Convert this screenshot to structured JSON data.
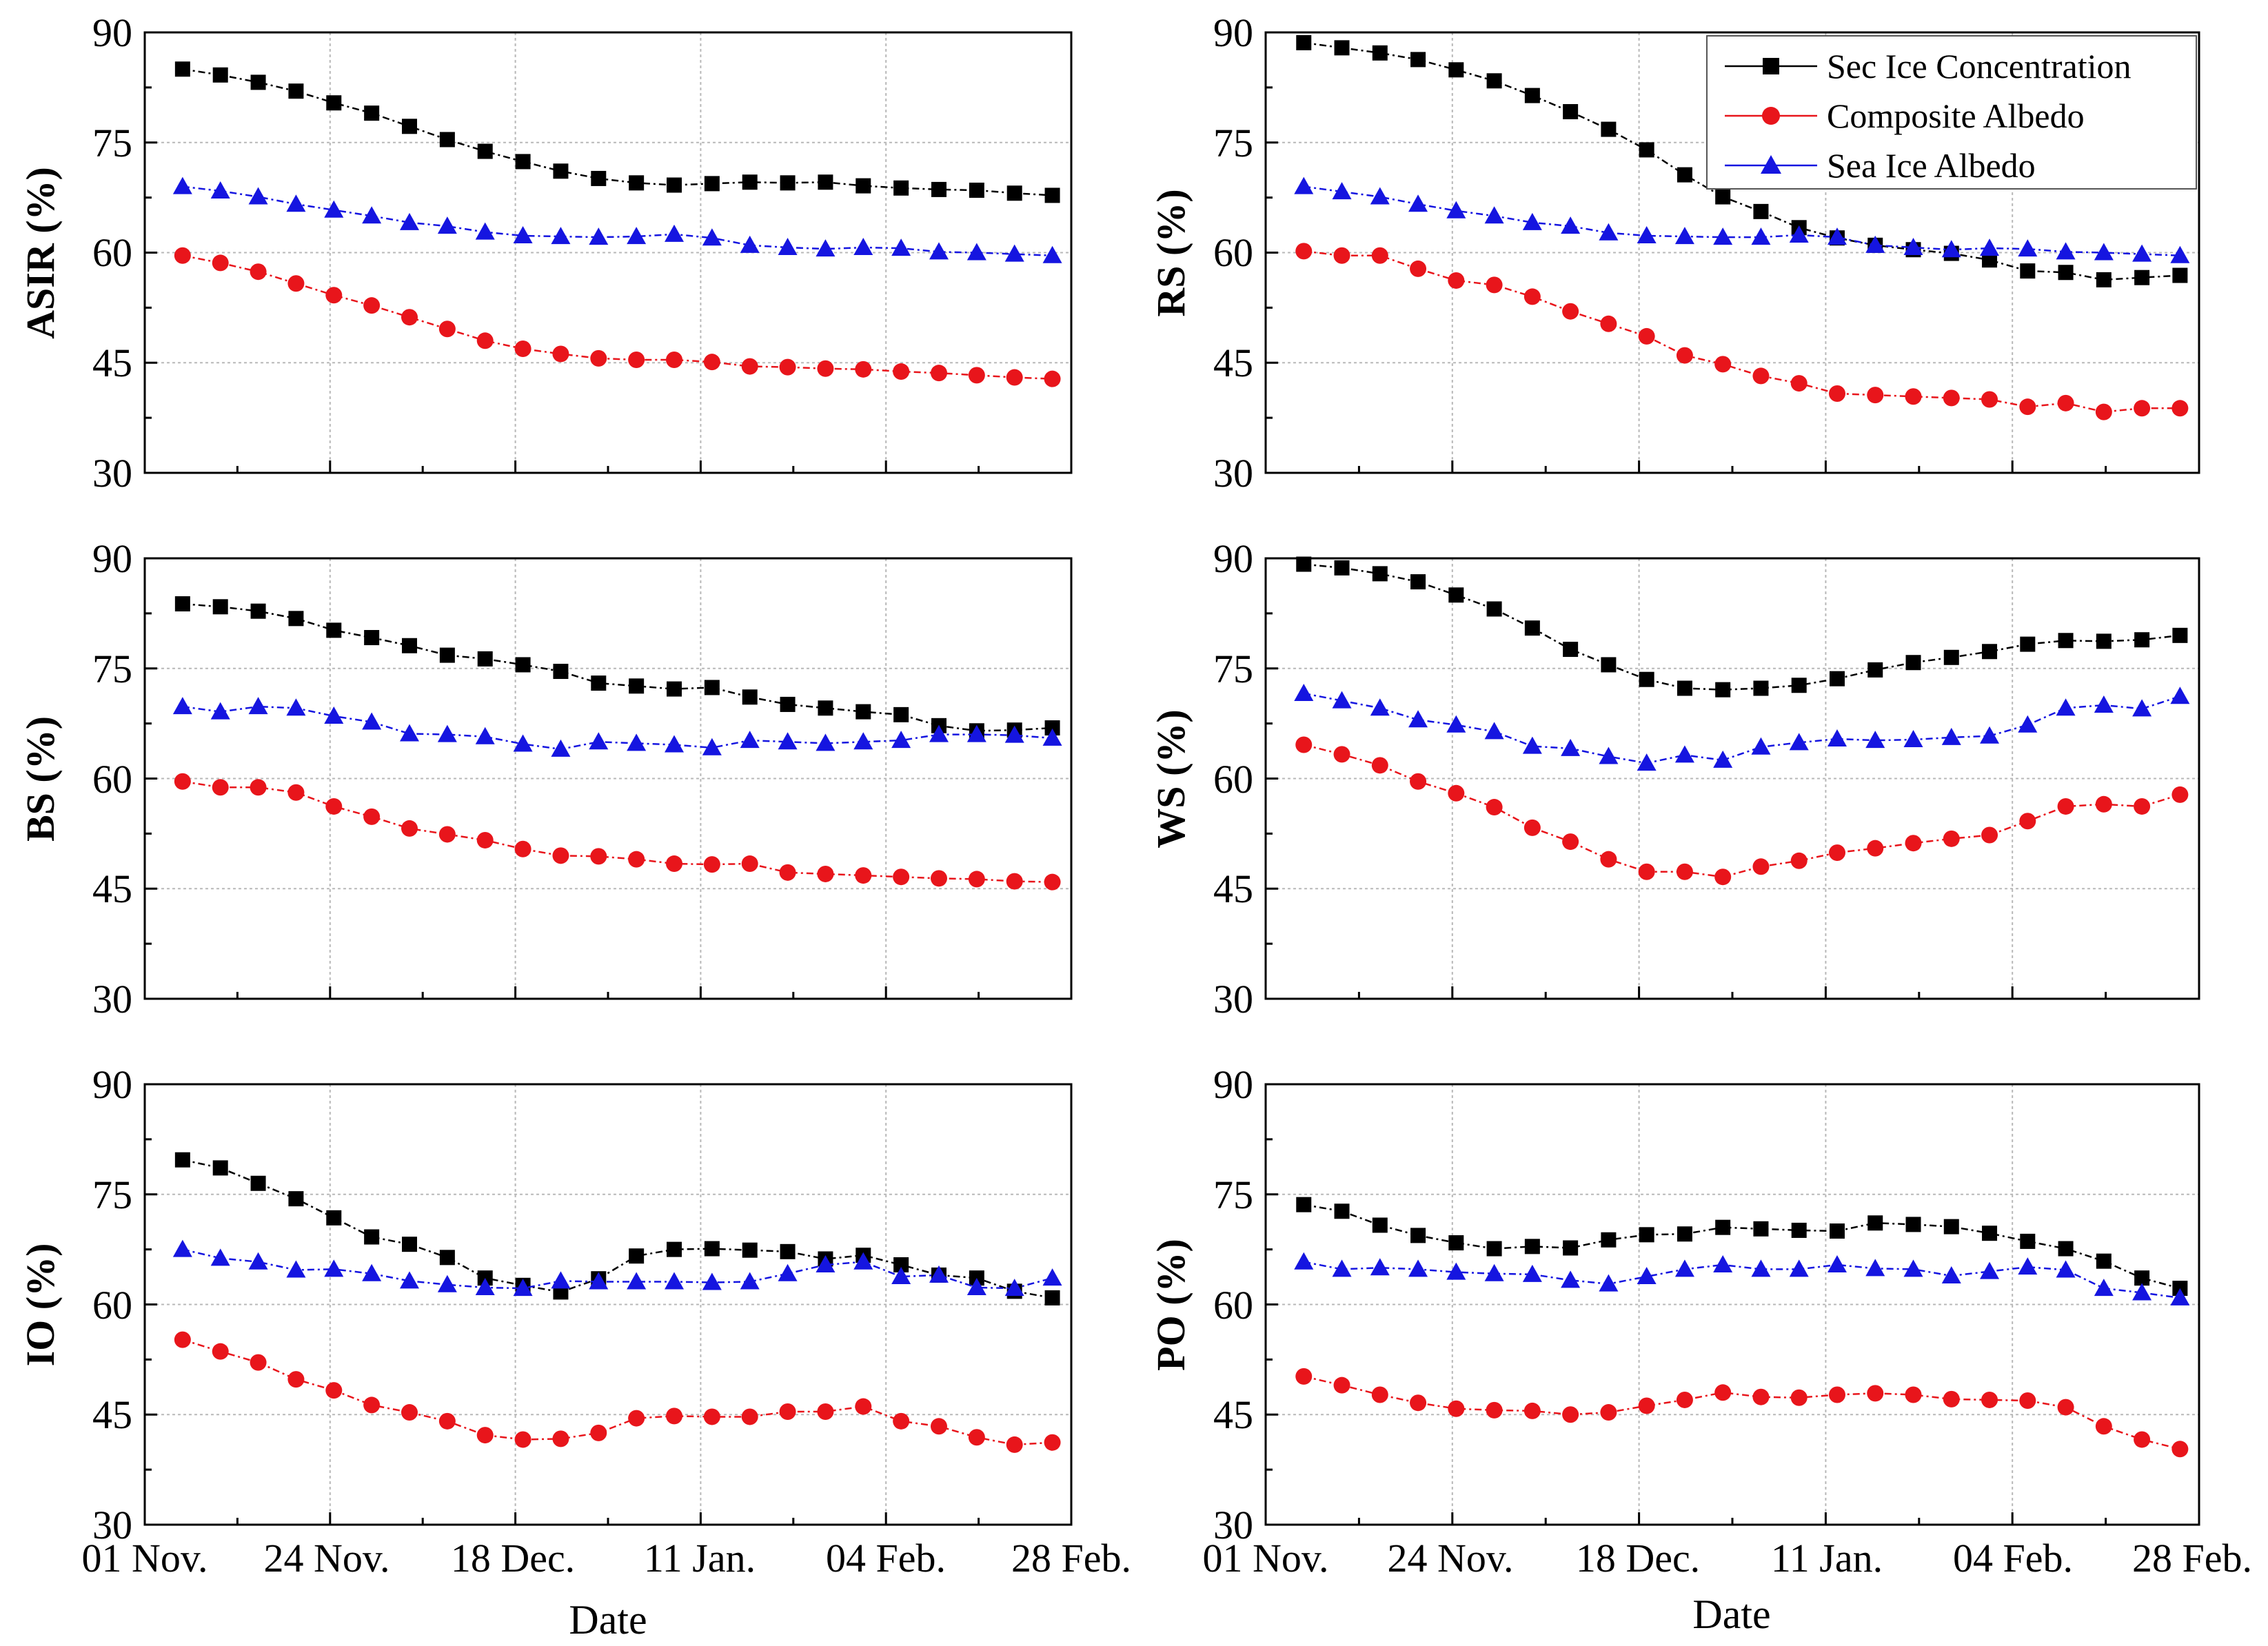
{
  "figure": {
    "xlabel": "Date",
    "x_tick_labels": [
      "01 Nov.",
      "24 Nov.",
      "18 Dec.",
      "11 Jan.",
      "04 Feb.",
      "28 Feb."
    ],
    "y_tick_labels": [
      "30",
      "45",
      "60",
      "75",
      "90"
    ],
    "legend": [
      "Sec Ice Concentration",
      "Composite Albedo",
      "Sea Ice Albedo"
    ]
  },
  "colors": {
    "concentration": "#000000",
    "composite": "#e8151b",
    "sea_ice": "#1515e0",
    "grid": "#b8b8b8"
  },
  "chart_data": [
    {
      "type": "line",
      "ylabel": "ASIR (%)",
      "ylim": [
        30,
        90
      ],
      "xlim": [
        0,
        24.5
      ],
      "x": [
        1,
        2,
        3,
        4,
        5,
        6,
        7,
        8,
        9,
        10,
        11,
        12,
        13,
        14,
        15,
        16,
        17,
        18,
        19,
        20,
        21,
        22,
        23,
        24
      ],
      "series": [
        {
          "name": "Sec Ice Concentration",
          "values": [
            85,
            84.2,
            83.2,
            82,
            80.4,
            79,
            77.2,
            75.4,
            73.8,
            72.4,
            71.1,
            70.1,
            69.5,
            69.2,
            69.4,
            69.6,
            69.5,
            69.6,
            69.1,
            68.8,
            68.6,
            68.5,
            68.1,
            67.8
          ]
        },
        {
          "name": "Composite Albedo",
          "values": [
            59.6,
            58.6,
            57.4,
            55.8,
            54.2,
            52.8,
            51.2,
            49.6,
            48,
            46.9,
            46.2,
            45.6,
            45.4,
            45.4,
            45.1,
            44.5,
            44.4,
            44.2,
            44.1,
            43.8,
            43.6,
            43.3,
            43,
            42.8
          ]
        },
        {
          "name": "Sea Ice Albedo",
          "values": [
            69,
            68.4,
            67.6,
            66.6,
            65.8,
            65,
            64.1,
            63.6,
            62.8,
            62.3,
            62.2,
            62.1,
            62.2,
            62.5,
            62,
            61,
            60.7,
            60.5,
            60.7,
            60.6,
            60.1,
            60,
            59.8,
            59.6
          ]
        }
      ]
    },
    {
      "type": "line",
      "ylabel": "RS (%)",
      "ylim": [
        30,
        90
      ],
      "xlim": [
        0,
        24.5
      ],
      "x": [
        1,
        2,
        3,
        4,
        5,
        6,
        7,
        8,
        9,
        10,
        11,
        12,
        13,
        14,
        15,
        16,
        17,
        18,
        19,
        20,
        21,
        22,
        23,
        24
      ],
      "series": [
        {
          "name": "Sec Ice Concentration",
          "values": [
            88.6,
            87.9,
            87.2,
            86.3,
            84.9,
            83.4,
            81.4,
            79.2,
            76.8,
            74,
            70.6,
            67.6,
            65.6,
            63.4,
            62,
            61,
            60.4,
            59.9,
            59,
            57.5,
            57.3,
            56.3,
            56.6,
            56.9
          ]
        },
        {
          "name": "Composite Albedo",
          "values": [
            60.2,
            59.6,
            59.6,
            57.8,
            56.2,
            55.6,
            54,
            52,
            50.3,
            48.6,
            46,
            44.8,
            43.2,
            42.2,
            40.8,
            40.6,
            40.4,
            40.2,
            40,
            39,
            39.5,
            38.3,
            38.8,
            38.8
          ]
        },
        {
          "name": "Sea Ice Albedo",
          "values": [
            69,
            68.3,
            67.6,
            66.6,
            65.7,
            65,
            64.1,
            63.6,
            62.7,
            62.3,
            62.2,
            62.1,
            62.1,
            62.4,
            62.1,
            61,
            60.7,
            60.4,
            60.6,
            60.5,
            60.1,
            60,
            59.8,
            59.6
          ]
        }
      ]
    },
    {
      "type": "line",
      "ylabel": "BS (%)",
      "ylim": [
        30,
        90
      ],
      "xlim": [
        0,
        24.5
      ],
      "x": [
        1,
        2,
        3,
        4,
        5,
        6,
        7,
        8,
        9,
        10,
        11,
        12,
        13,
        14,
        15,
        16,
        17,
        18,
        19,
        20,
        21,
        22,
        23,
        24
      ],
      "series": [
        {
          "name": "Sec Ice Concentration",
          "values": [
            83.8,
            83.4,
            82.8,
            81.8,
            80.2,
            79.2,
            78.1,
            76.8,
            76.3,
            75.5,
            74.6,
            73,
            72.6,
            72.2,
            72.4,
            71.1,
            70.1,
            69.6,
            69.1,
            68.7,
            67.2,
            66.5,
            66.6,
            66.9
          ]
        },
        {
          "name": "Composite Albedo",
          "values": [
            59.6,
            58.8,
            58.8,
            58.1,
            56.2,
            54.8,
            53.2,
            52.4,
            51.6,
            50.4,
            49.5,
            49.4,
            49,
            48.4,
            48.3,
            48.4,
            47.2,
            47,
            46.8,
            46.6,
            46.4,
            46.3,
            46,
            45.9
          ]
        },
        {
          "name": "Sea Ice Albedo",
          "values": [
            69.8,
            69.1,
            69.8,
            69.6,
            68.5,
            67.7,
            66.1,
            66,
            65.7,
            64.7,
            64,
            65,
            64.8,
            64.6,
            64.2,
            65.2,
            65,
            64.8,
            65,
            65.2,
            66,
            66,
            65.9,
            65.5
          ]
        }
      ]
    },
    {
      "type": "line",
      "ylabel": "WS (%)",
      "ylim": [
        30,
        90
      ],
      "xlim": [
        0,
        24.5
      ],
      "x": [
        1,
        2,
        3,
        4,
        5,
        6,
        7,
        8,
        9,
        10,
        11,
        12,
        13,
        14,
        15,
        16,
        17,
        18,
        19,
        20,
        21,
        22,
        23,
        24
      ],
      "series": [
        {
          "name": "Sec Ice Concentration",
          "values": [
            89.2,
            88.7,
            87.9,
            86.8,
            85,
            83.1,
            80.5,
            77.6,
            75.5,
            73.5,
            72.3,
            72.1,
            72.3,
            72.7,
            73.6,
            74.8,
            75.8,
            76.5,
            77.3,
            78.3,
            78.8,
            78.7,
            78.9,
            79.5
          ]
        },
        {
          "name": "Composite Albedo",
          "values": [
            64.6,
            63.3,
            61.8,
            59.6,
            58,
            56.1,
            53.3,
            51.4,
            49,
            47.3,
            47.3,
            46.6,
            48,
            48.8,
            49.9,
            50.5,
            51.2,
            51.8,
            52.3,
            54.2,
            56.2,
            56.5,
            56.2,
            57.8
          ]
        },
        {
          "name": "Sea Ice Albedo",
          "values": [
            71.6,
            70.6,
            69.6,
            68,
            67.3,
            66.4,
            64.4,
            64.1,
            63,
            62.1,
            63.2,
            62.5,
            64.3,
            64.9,
            65.4,
            65.2,
            65.3,
            65.6,
            65.8,
            67.3,
            69.6,
            70,
            69.5,
            71.2
          ]
        }
      ]
    },
    {
      "type": "line",
      "ylabel": "IO (%)",
      "ylim": [
        30,
        90
      ],
      "xlim": [
        0,
        24.5
      ],
      "x": [
        1,
        2,
        3,
        4,
        5,
        6,
        7,
        8,
        9,
        10,
        11,
        12,
        13,
        14,
        15,
        16,
        17,
        18,
        19,
        20,
        21,
        22,
        23,
        24
      ],
      "series": [
        {
          "name": "Sec Ice Concentration",
          "values": [
            79.7,
            78.6,
            76.5,
            74.4,
            71.8,
            69.2,
            68.2,
            66.4,
            63.6,
            62.6,
            61.7,
            63.5,
            66.6,
            67.5,
            67.6,
            67.4,
            67.2,
            66.2,
            66.7,
            65.4,
            64,
            63.6,
            61.8,
            60.9
          ]
        },
        {
          "name": "Composite Albedo",
          "values": [
            55.2,
            53.6,
            52.1,
            49.8,
            48.3,
            46.3,
            45.3,
            44.1,
            42.2,
            41.6,
            41.7,
            42.5,
            44.5,
            44.8,
            44.7,
            44.7,
            45.4,
            45.4,
            46.1,
            44.1,
            43.4,
            41.9,
            40.9,
            41.2
          ]
        },
        {
          "name": "Sea Ice Albedo",
          "values": [
            67.5,
            66.3,
            65.8,
            64.7,
            64.8,
            64.2,
            63.2,
            62.7,
            62.3,
            62.2,
            63.2,
            63.1,
            63.1,
            63.1,
            63,
            63.1,
            64.2,
            65.4,
            65.8,
            63.8,
            64,
            62.3,
            62.2,
            63.6
          ]
        }
      ]
    },
    {
      "type": "line",
      "ylabel": "PO (%)",
      "ylim": [
        30,
        90
      ],
      "xlim": [
        0,
        24.5
      ],
      "x": [
        1,
        2,
        3,
        4,
        5,
        6,
        7,
        8,
        9,
        10,
        11,
        12,
        13,
        14,
        15,
        16,
        17,
        18,
        19,
        20,
        21,
        22,
        23,
        24
      ],
      "series": [
        {
          "name": "Sec Ice Concentration",
          "values": [
            73.6,
            72.7,
            70.8,
            69.4,
            68.4,
            67.6,
            67.9,
            67.7,
            68.8,
            69.5,
            69.6,
            70.5,
            70.3,
            70.1,
            70,
            71.1,
            70.9,
            70.6,
            69.7,
            68.6,
            67.6,
            65.9,
            63.6,
            62.2
          ]
        },
        {
          "name": "Composite Albedo",
          "values": [
            50.2,
            49,
            47.7,
            46.6,
            45.8,
            45.6,
            45.5,
            45,
            45.3,
            46.2,
            47,
            48,
            47.4,
            47.3,
            47.7,
            47.9,
            47.7,
            47.1,
            47,
            46.9,
            46,
            43.4,
            41.6,
            40.3
          ]
        },
        {
          "name": "Sea Ice Albedo",
          "values": [
            65.8,
            64.8,
            65,
            64.8,
            64.4,
            64.2,
            64.1,
            63.3,
            62.8,
            63.8,
            64.8,
            65.4,
            64.8,
            64.8,
            65.4,
            64.9,
            64.8,
            63.9,
            64.5,
            65.1,
            64.7,
            62.2,
            61.6,
            60.9
          ]
        }
      ]
    }
  ]
}
